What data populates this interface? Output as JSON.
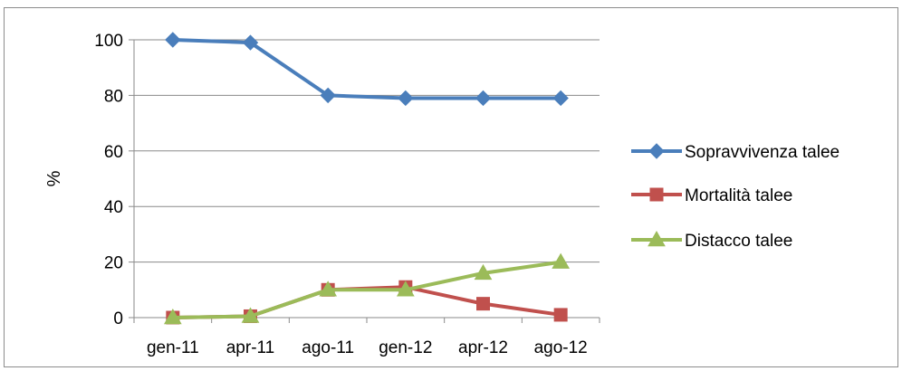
{
  "chart_data": {
    "type": "line",
    "title": "",
    "xlabel": "",
    "ylabel": "%",
    "categories": [
      "gen-11",
      "apr-11",
      "ago-11",
      "gen-12",
      "apr-12",
      "ago-12"
    ],
    "ylim": [
      0,
      100
    ],
    "yticks": [
      0,
      20,
      40,
      60,
      80,
      100
    ],
    "grid": true,
    "legend_position": "right",
    "series": [
      {
        "name": "Sopravvivenza talee",
        "values": [
          100,
          99,
          80,
          79,
          79,
          79
        ],
        "color": "#4a7ebb",
        "marker": "diamond"
      },
      {
        "name": "Mortalità talee",
        "values": [
          0,
          0.5,
          10,
          11,
          5,
          1
        ],
        "color": "#c0504d",
        "marker": "square"
      },
      {
        "name": "Distacco talee",
        "values": [
          0,
          0.5,
          10,
          10,
          16,
          20
        ],
        "color": "#9bbb59",
        "marker": "triangle"
      }
    ]
  }
}
